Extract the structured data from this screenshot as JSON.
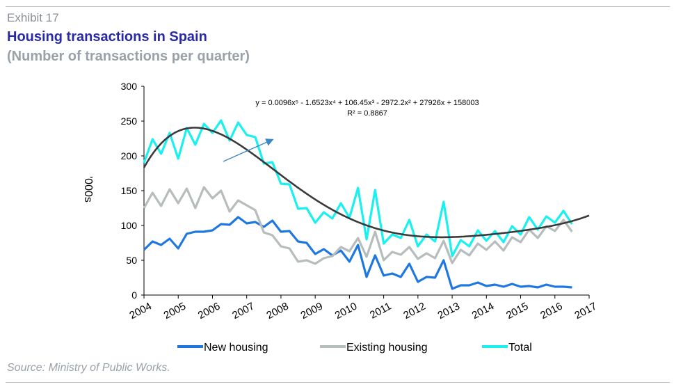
{
  "header": {
    "exhibit": "Exhibit 17",
    "title": "Housing transactions in Spain",
    "subtitle": "(Number of transactions per quarter)"
  },
  "footer": {
    "source": "Source: Ministry of Public Works."
  },
  "chart_data": {
    "type": "line",
    "ylabel": "'000s",
    "ylim": [
      0,
      300
    ],
    "yticks": [
      0,
      50,
      100,
      150,
      200,
      250,
      300
    ],
    "xlim": [
      2004,
      2017
    ],
    "xticks": [
      "2004",
      "2005",
      "2006",
      "2007",
      "2008",
      "2009",
      "2010",
      "2011",
      "2012",
      "2013",
      "2014",
      "2015",
      "2016",
      "2017"
    ],
    "x_start": 2004,
    "points_per_year": 4,
    "equation": "y = 0.0096x⁵ - 1.6523x⁴ + 106.45x³ - 2972.2x² + 27926x + 158003",
    "r_squared": "R² = 0.8867",
    "legend_position": "bottom",
    "colors": {
      "new": "#1f77e0",
      "existing": "#b7bcbc",
      "total": "#19f0f0",
      "trend": "#3a3a3a",
      "arrow": "#3b88c8"
    },
    "series": [
      {
        "name": "New housing",
        "values": [
          65,
          77,
          72,
          81,
          67,
          88,
          91,
          91,
          93,
          102,
          101,
          112,
          103,
          105,
          98,
          107,
          91,
          92,
          77,
          75,
          59,
          66,
          57,
          64,
          48,
          72,
          26,
          57,
          28,
          31,
          26,
          45,
          19,
          26,
          25,
          50,
          9,
          14,
          14,
          18,
          13,
          15,
          12,
          16,
          12,
          13,
          11,
          15,
          12,
          12,
          11
        ]
      },
      {
        "name": "Existing housing",
        "values": [
          125,
          147,
          128,
          152,
          132,
          153,
          125,
          155,
          139,
          150,
          120,
          136,
          129,
          122,
          90,
          86,
          70,
          67,
          48,
          50,
          45,
          53,
          56,
          69,
          63,
          82,
          55,
          91,
          50,
          62,
          58,
          69,
          52,
          60,
          53,
          78,
          46,
          65,
          57,
          74,
          65,
          77,
          64,
          83,
          76,
          94,
          82,
          99,
          92,
          108,
          91
        ]
      },
      {
        "name": "Total",
        "values": [
          190,
          224,
          203,
          233,
          196,
          240,
          216,
          246,
          233,
          251,
          222,
          248,
          230,
          227,
          189,
          191,
          160,
          159,
          124,
          125,
          104,
          119,
          110,
          132,
          111,
          154,
          80,
          151,
          74,
          87,
          82,
          108,
          70,
          87,
          77,
          134,
          56,
          79,
          70,
          93,
          78,
          92,
          76,
          99,
          87,
          112,
          94,
          113,
          104,
          121,
          102
        ]
      }
    ]
  }
}
